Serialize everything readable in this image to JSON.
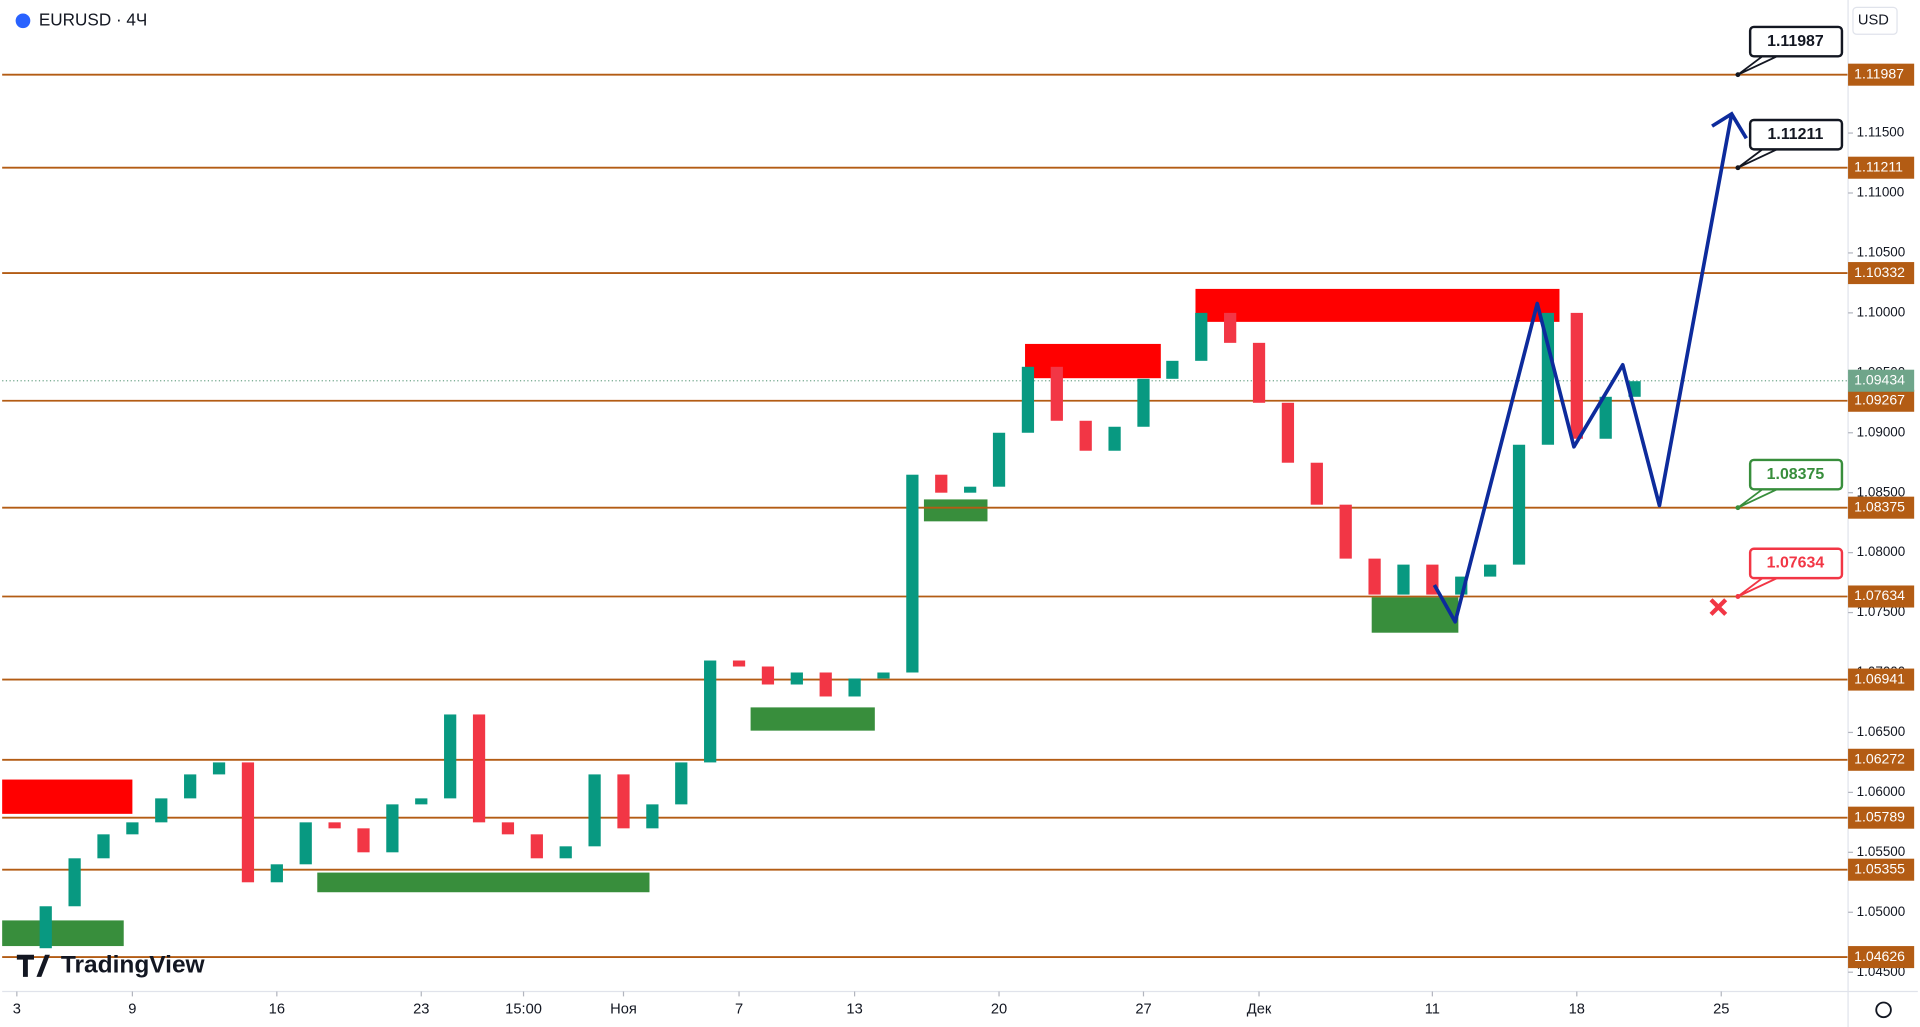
{
  "header": {
    "symbol": "EURUSD · 4Ч",
    "currency": "USD",
    "logo": "TradingView"
  },
  "chart_data": {
    "type": "candlestick",
    "up_color": "#089981",
    "down_color": "#f23645",
    "series": [
      {
        "x": [
          0,
          1,
          2,
          3,
          4,
          5,
          6,
          7,
          8,
          9,
          10,
          11,
          12,
          13,
          14,
          15,
          16,
          17,
          18,
          19,
          20,
          21,
          22,
          23,
          24,
          25,
          26,
          27,
          28,
          29,
          30,
          31,
          32,
          33,
          34,
          35,
          36,
          37,
          38,
          39,
          40,
          41,
          42,
          43,
          44,
          45,
          46,
          47,
          48,
          49,
          50,
          51,
          52,
          53,
          54,
          55,
          56
        ],
        "values": [
          1.047,
          1.0505,
          1.0545,
          1.0565,
          1.0575,
          1.0595,
          1.0615,
          1.0625,
          1.0525,
          1.054,
          1.0575,
          1.057,
          1.055,
          1.059,
          1.0595,
          1.0665,
          1.0575,
          1.0565,
          1.0545,
          1.0555,
          1.0615,
          1.057,
          1.059,
          1.0625,
          1.071,
          1.0705,
          1.069,
          1.07,
          1.068,
          1.0695,
          1.07,
          1.0865,
          1.085,
          1.0855,
          1.09,
          1.0955,
          1.091,
          1.0885,
          1.0905,
          1.0945,
          1.096,
          1.1,
          1.0975,
          1.0925,
          1.0875,
          1.084,
          1.0795,
          1.0765,
          1.079,
          1.0765,
          1.078,
          1.079,
          1.089,
          1.1,
          1.0895,
          1.093,
          1.0943
        ]
      }
    ],
    "xlim": [
      -0.508,
      63.39
    ],
    "xticks": [
      {
        "value": 0,
        "label": "3"
      },
      {
        "value": 4,
        "label": "9"
      },
      {
        "value": 9,
        "label": "16"
      },
      {
        "value": 14,
        "label": "23"
      },
      {
        "value": 17.54,
        "label": "15:00"
      },
      {
        "value": 21,
        "label": "Ноя"
      },
      {
        "value": 25,
        "label": "7"
      },
      {
        "value": 29,
        "label": "13"
      },
      {
        "value": 34,
        "label": "20"
      },
      {
        "value": 39,
        "label": "27"
      },
      {
        "value": 43,
        "label": "Дек"
      },
      {
        "value": 49,
        "label": "11"
      },
      {
        "value": 54,
        "label": "18"
      },
      {
        "value": 59,
        "label": "25"
      }
    ],
    "ylim": [
      1.0439,
      1.1261
    ],
    "yticks": [
      {
        "value": 1.045,
        "label": "1.04500"
      },
      {
        "value": 1.05,
        "label": "1.05000"
      },
      {
        "value": 1.055,
        "label": "1.05500"
      },
      {
        "value": 1.06,
        "label": "1.06000"
      },
      {
        "value": 1.065,
        "label": "1.06500"
      },
      {
        "value": 1.07,
        "label": "1.07000"
      },
      {
        "value": 1.075,
        "label": "1.07500"
      },
      {
        "value": 1.08,
        "label": "1.08000"
      },
      {
        "value": 1.085,
        "label": "1.08500"
      },
      {
        "value": 1.09,
        "label": "1.09000"
      },
      {
        "value": 1.095,
        "label": "1.09500"
      },
      {
        "value": 1.1,
        "label": "1.10000"
      },
      {
        "value": 1.105,
        "label": "1.10500"
      },
      {
        "value": 1.11,
        "label": "1.11000"
      },
      {
        "value": 1.115,
        "label": "1.11500"
      }
    ],
    "level_color": "#b35c14",
    "levels": [
      1.11987,
      1.11211,
      1.10332,
      1.09267,
      1.08375,
      1.07634,
      1.06941,
      1.06272,
      1.05789,
      1.05355,
      1.04626
    ],
    "current_price": 1.09434,
    "current_color": "#6fa58a",
    "zones": [
      {
        "x": [
          -0.508,
          4.0
        ],
        "range": [
          1.05821,
          1.06107
        ],
        "color": "#ff0000"
      },
      {
        "x": [
          34.9,
          39.6
        ],
        "range": [
          1.09455,
          1.09741
        ],
        "color": "#ff0000"
      },
      {
        "x": [
          40.8,
          53.4
        ],
        "range": [
          1.09925,
          1.102
        ],
        "color": "#ff0000"
      },
      {
        "x": [
          -0.508,
          3.7
        ],
        "range": [
          1.04718,
          1.04932
        ],
        "color": "#388e3c"
      },
      {
        "x": [
          10.4,
          21.9
        ],
        "range": [
          1.05167,
          1.05331
        ],
        "color": "#388e3c"
      },
      {
        "x": [
          25.4,
          29.7
        ],
        "range": [
          1.06515,
          1.06709
        ],
        "color": "#388e3c"
      },
      {
        "x": [
          31.4,
          33.6
        ],
        "range": [
          1.08261,
          1.08444
        ],
        "color": "#388e3c"
      },
      {
        "x": [
          46.9,
          49.9
        ],
        "range": [
          1.07332,
          1.07628
        ],
        "color": "#388e3c"
      }
    ],
    "projection": {
      "color": "#0d2b9c",
      "x": [
        49.07,
        49.79,
        52.63,
        53.9,
        55.59,
        56.86,
        59.36
      ],
      "values": [
        1.0773,
        1.07423,
        1.10078,
        1.08883,
        1.09567,
        1.08393,
        1.1166
      ]
    },
    "callouts": [
      {
        "value": 1.11987,
        "color": "#131722"
      },
      {
        "value": 1.11211,
        "color": "#131722"
      },
      {
        "value": 1.08375,
        "color": "#388e3c"
      },
      {
        "value": 1.07634,
        "color": "#f23645"
      }
    ],
    "stop": {
      "x": 58.9,
      "value": 1.07546,
      "color": "#f23645"
    }
  }
}
